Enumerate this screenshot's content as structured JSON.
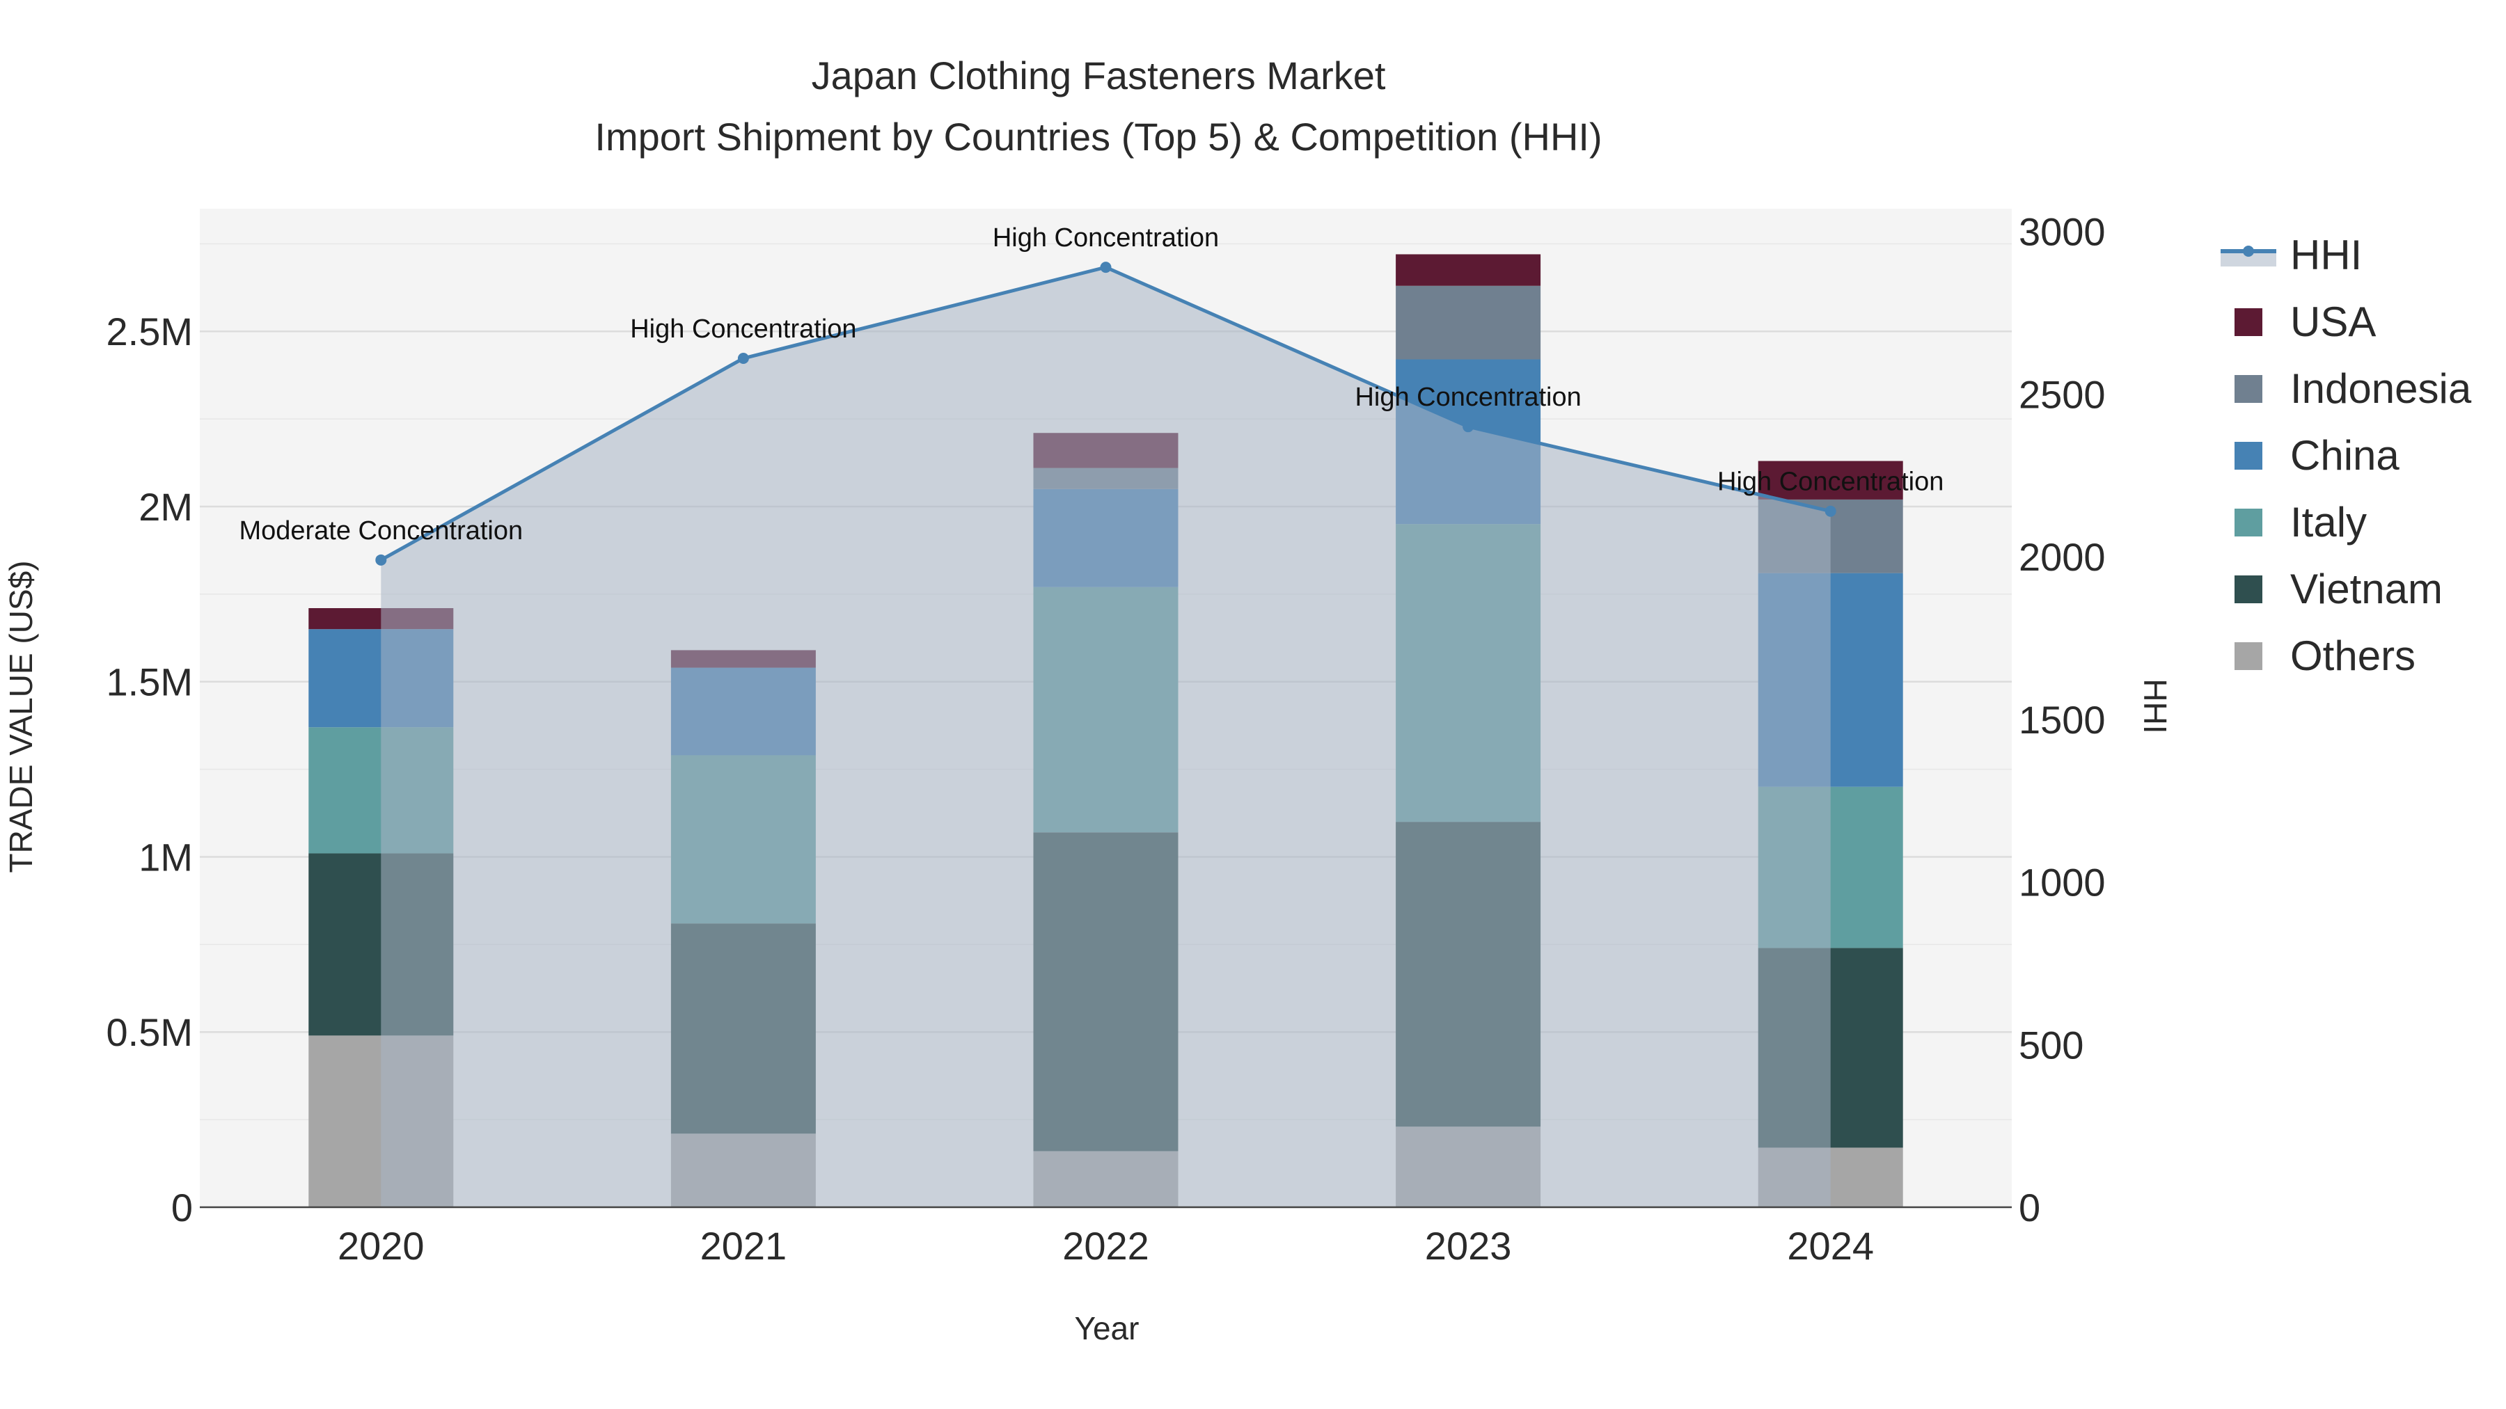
{
  "chart_data": {
    "type": "bar",
    "title": "Japan Clothing Fasteners Market",
    "subtitle": "Import Shipment by Countries (Top 5) & Competition (HHI)",
    "xlabel": "Year",
    "ylabel": "TRADE VALUE (US$)",
    "y2label": "HHI",
    "categories": [
      "2020",
      "2021",
      "2022",
      "2023",
      "2024"
    ],
    "ylim": [
      0,
      2850000
    ],
    "y2lim": [
      0,
      3070
    ],
    "y_ticks": [
      0,
      500000,
      1000000,
      1500000,
      2000000,
      2500000
    ],
    "y_tick_labels": [
      "0",
      "0.5M",
      "1M",
      "1.5M",
      "2M",
      "2.5M"
    ],
    "y2_ticks": [
      0,
      500,
      1000,
      1500,
      2000,
      2500,
      3000
    ],
    "y2_tick_labels": [
      "0",
      "500",
      "1000",
      "1500",
      "2000",
      "2500",
      "3000"
    ],
    "grid": true,
    "legend_position": "right",
    "series": [
      {
        "name": "Others",
        "color": "#a6a6a6",
        "values": [
          490000,
          210000,
          160000,
          230000,
          170000
        ]
      },
      {
        "name": "Vietnam",
        "color": "#2f4f4f",
        "values": [
          520000,
          600000,
          910000,
          870000,
          570000
        ]
      },
      {
        "name": "Italy",
        "color": "#5f9ea0",
        "values": [
          360000,
          480000,
          700000,
          850000,
          460000
        ]
      },
      {
        "name": "China",
        "color": "#4682b4",
        "values": [
          280000,
          250000,
          280000,
          470000,
          610000
        ]
      },
      {
        "name": "Indonesia",
        "color": "#708090",
        "values": [
          0,
          0,
          60000,
          210000,
          210000
        ]
      },
      {
        "name": "USA",
        "color": "#5c1a33",
        "values": [
          60000,
          50000,
          100000,
          90000,
          110000
        ]
      }
    ],
    "hhi": {
      "name": "HHI",
      "color": "#4682b4",
      "values": [
        1990,
        2610,
        2890,
        2400,
        2140
      ],
      "labels": [
        "Moderate Concentration",
        "High Concentration",
        "High Concentration",
        "High Concentration",
        "High Concentration"
      ]
    }
  }
}
